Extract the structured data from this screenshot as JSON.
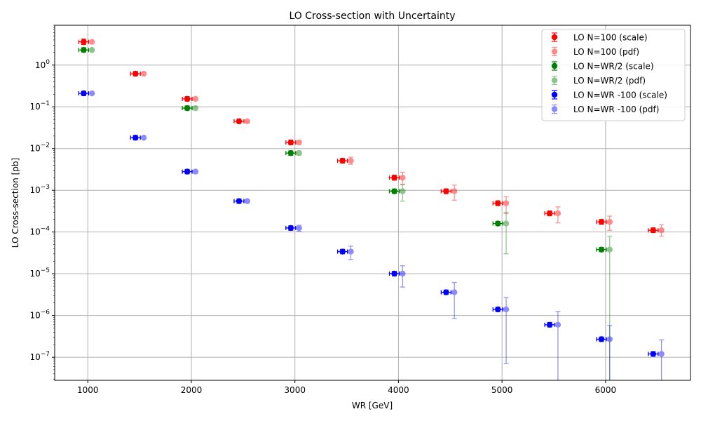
{
  "chart_data": {
    "type": "scatter",
    "title": "LO Cross-section with Uncertainty",
    "xlabel": "WR [GeV]",
    "ylabel": "LO Cross-section [pb]",
    "xlim": [
      680,
      6820
    ],
    "ylim": [
      2.8e-08,
      9
    ],
    "yscale": "log",
    "grid": true,
    "legend_position": "top-right",
    "x_ticks": [
      1000,
      2000,
      3000,
      4000,
      5000,
      6000
    ],
    "x_tick_labels": [
      "1000",
      "2000",
      "3000",
      "4000",
      "5000",
      "6000"
    ],
    "y_tick_labels": [
      {
        "base": "10",
        "exp": "−7"
      },
      {
        "base": "10",
        "exp": "−6"
      },
      {
        "base": "10",
        "exp": "−5"
      },
      {
        "base": "10",
        "exp": "−4"
      },
      {
        "base": "10",
        "exp": "−3"
      },
      {
        "base": "10",
        "exp": "−2"
      },
      {
        "base": "10",
        "exp": "−1"
      },
      {
        "base": "10",
        "exp": "0"
      }
    ],
    "series": [
      {
        "name": "LO N=100 (scale)",
        "color": "#ff0000",
        "opacity": 1.0,
        "marker": "errorbar-cap",
        "points": [
          {
            "x": 960,
            "y": 3.6,
            "lo": 3.1,
            "hi": 4.2
          },
          {
            "x": 1460,
            "y": 0.62,
            "lo": 0.55,
            "hi": 0.7
          },
          {
            "x": 1960,
            "y": 0.155,
            "lo": 0.137,
            "hi": 0.176
          },
          {
            "x": 2460,
            "y": 0.045,
            "lo": 0.04,
            "hi": 0.051
          },
          {
            "x": 2960,
            "y": 0.014,
            "lo": 0.0123,
            "hi": 0.016
          },
          {
            "x": 3460,
            "y": 0.0051,
            "lo": 0.0045,
            "hi": 0.0058
          },
          {
            "x": 3960,
            "y": 0.002,
            "lo": 0.00175,
            "hi": 0.0023
          },
          {
            "x": 4460,
            "y": 0.00095,
            "lo": 0.00083,
            "hi": 0.00108
          },
          {
            "x": 4960,
            "y": 0.00049,
            "lo": 0.00043,
            "hi": 0.00056
          },
          {
            "x": 5460,
            "y": 0.00028,
            "lo": 0.000245,
            "hi": 0.00032
          },
          {
            "x": 5960,
            "y": 0.000175,
            "lo": 0.000153,
            "hi": 0.0002
          },
          {
            "x": 6460,
            "y": 0.00011,
            "lo": 9.7e-05,
            "hi": 0.000126
          }
        ]
      },
      {
        "name": "LO N=100 (pdf)",
        "color": "#ff0000",
        "opacity": 0.45,
        "marker": "errorbar-pdf",
        "points": [
          {
            "x": 1040,
            "y": 3.6,
            "lo": 3.45,
            "hi": 3.75
          },
          {
            "x": 1540,
            "y": 0.62,
            "lo": 0.6,
            "hi": 0.64
          },
          {
            "x": 2040,
            "y": 0.155,
            "lo": 0.148,
            "hi": 0.163
          },
          {
            "x": 2540,
            "y": 0.045,
            "lo": 0.042,
            "hi": 0.048
          },
          {
            "x": 3040,
            "y": 0.014,
            "lo": 0.0125,
            "hi": 0.0158
          },
          {
            "x": 3540,
            "y": 0.0051,
            "lo": 0.0042,
            "hi": 0.0062
          },
          {
            "x": 4040,
            "y": 0.002,
            "lo": 0.0014,
            "hi": 0.0027
          },
          {
            "x": 4540,
            "y": 0.00095,
            "lo": 0.00058,
            "hi": 0.00133
          },
          {
            "x": 5040,
            "y": 0.00049,
            "lo": 0.00028,
            "hi": 0.0007
          },
          {
            "x": 5540,
            "y": 0.00028,
            "lo": 0.000165,
            "hi": 0.0004
          },
          {
            "x": 6040,
            "y": 0.000175,
            "lo": 0.00011,
            "hi": 0.00024
          },
          {
            "x": 6540,
            "y": 0.00011,
            "lo": 8e-05,
            "hi": 0.00015
          }
        ]
      },
      {
        "name": "LO N=WR/2 (scale)",
        "color": "#008000",
        "opacity": 1.0,
        "marker": "errorbar-cap",
        "points": [
          {
            "x": 960,
            "y": 2.3,
            "lo": 2.05,
            "hi": 2.6
          },
          {
            "x": 1960,
            "y": 0.093,
            "lo": 0.083,
            "hi": 0.105
          },
          {
            "x": 2960,
            "y": 0.0078,
            "lo": 0.0069,
            "hi": 0.0088
          },
          {
            "x": 3960,
            "y": 0.00095,
            "lo": 0.00084,
            "hi": 0.00107
          },
          {
            "x": 4960,
            "y": 0.00016,
            "lo": 0.000142,
            "hi": 0.00018
          },
          {
            "x": 5960,
            "y": 3.8e-05,
            "lo": 3.36e-05,
            "hi": 4.28e-05
          }
        ]
      },
      {
        "name": "LO N=WR/2 (pdf)",
        "color": "#008000",
        "opacity": 0.45,
        "marker": "errorbar-pdf",
        "points": [
          {
            "x": 1040,
            "y": 2.3,
            "lo": 2.2,
            "hi": 2.4
          },
          {
            "x": 2040,
            "y": 0.093,
            "lo": 0.088,
            "hi": 0.098
          },
          {
            "x": 3040,
            "y": 0.0078,
            "lo": 0.0069,
            "hi": 0.0088
          },
          {
            "x": 4040,
            "y": 0.00095,
            "lo": 0.00055,
            "hi": 0.00135
          },
          {
            "x": 5040,
            "y": 0.00016,
            "lo": 3e-05,
            "hi": 0.00029
          },
          {
            "x": 6040,
            "y": 3.8e-05,
            "lo": 0.0,
            "hi": 8e-05
          }
        ]
      },
      {
        "name": "LO N=WR -100 (scale)",
        "color": "#0000ff",
        "opacity": 1.0,
        "marker": "errorbar-cap",
        "points": [
          {
            "x": 960,
            "y": 0.21,
            "lo": 0.186,
            "hi": 0.237
          },
          {
            "x": 1460,
            "y": 0.0182,
            "lo": 0.0161,
            "hi": 0.0206
          },
          {
            "x": 1960,
            "y": 0.0028,
            "lo": 0.00248,
            "hi": 0.00316
          },
          {
            "x": 2460,
            "y": 0.00055,
            "lo": 0.000487,
            "hi": 0.000621
          },
          {
            "x": 2960,
            "y": 0.000125,
            "lo": 0.00011,
            "hi": 0.000141
          },
          {
            "x": 3460,
            "y": 3.4e-05,
            "lo": 3.01e-05,
            "hi": 3.84e-05
          },
          {
            "x": 3960,
            "y": 1.01e-05,
            "lo": 8.9e-06,
            "hi": 1.14e-05
          },
          {
            "x": 4460,
            "y": 3.6e-06,
            "lo": 3.19e-06,
            "hi": 4.07e-06
          },
          {
            "x": 4960,
            "y": 1.4e-06,
            "lo": 1.24e-06,
            "hi": 1.58e-06
          },
          {
            "x": 5460,
            "y": 6e-07,
            "lo": 5.3e-07,
            "hi": 6.8e-07
          },
          {
            "x": 5960,
            "y": 2.7e-07,
            "lo": 2.39e-07,
            "hi": 3.05e-07
          },
          {
            "x": 6460,
            "y": 1.2e-07,
            "lo": 1.06e-07,
            "hi": 1.36e-07
          }
        ]
      },
      {
        "name": "LO N=WR -100 (pdf)",
        "color": "#0000ff",
        "opacity": 0.45,
        "marker": "errorbar-pdf",
        "points": [
          {
            "x": 1040,
            "y": 0.21,
            "lo": 0.2,
            "hi": 0.22
          },
          {
            "x": 1540,
            "y": 0.0182,
            "lo": 0.0172,
            "hi": 0.0192
          },
          {
            "x": 2040,
            "y": 0.0028,
            "lo": 0.0026,
            "hi": 0.003
          },
          {
            "x": 2540,
            "y": 0.00055,
            "lo": 0.0005,
            "hi": 0.0006
          },
          {
            "x": 3040,
            "y": 0.000125,
            "lo": 0.000105,
            "hi": 0.000145
          },
          {
            "x": 3540,
            "y": 3.4e-05,
            "lo": 2.2e-05,
            "hi": 4.6e-05
          },
          {
            "x": 4040,
            "y": 1.01e-05,
            "lo": 4.8e-06,
            "hi": 1.55e-05
          },
          {
            "x": 4540,
            "y": 3.6e-06,
            "lo": 8.5e-07,
            "hi": 6.2e-06
          },
          {
            "x": 5040,
            "y": 1.4e-06,
            "lo": 7e-08,
            "hi": 2.7e-06
          },
          {
            "x": 5540,
            "y": 6e-07,
            "lo": 0.0,
            "hi": 1.25e-06
          },
          {
            "x": 6040,
            "y": 2.7e-07,
            "lo": 0.0,
            "hi": 5.8e-07
          },
          {
            "x": 6540,
            "y": 1.2e-07,
            "lo": 0.0,
            "hi": 2.6e-07
          }
        ]
      }
    ]
  }
}
